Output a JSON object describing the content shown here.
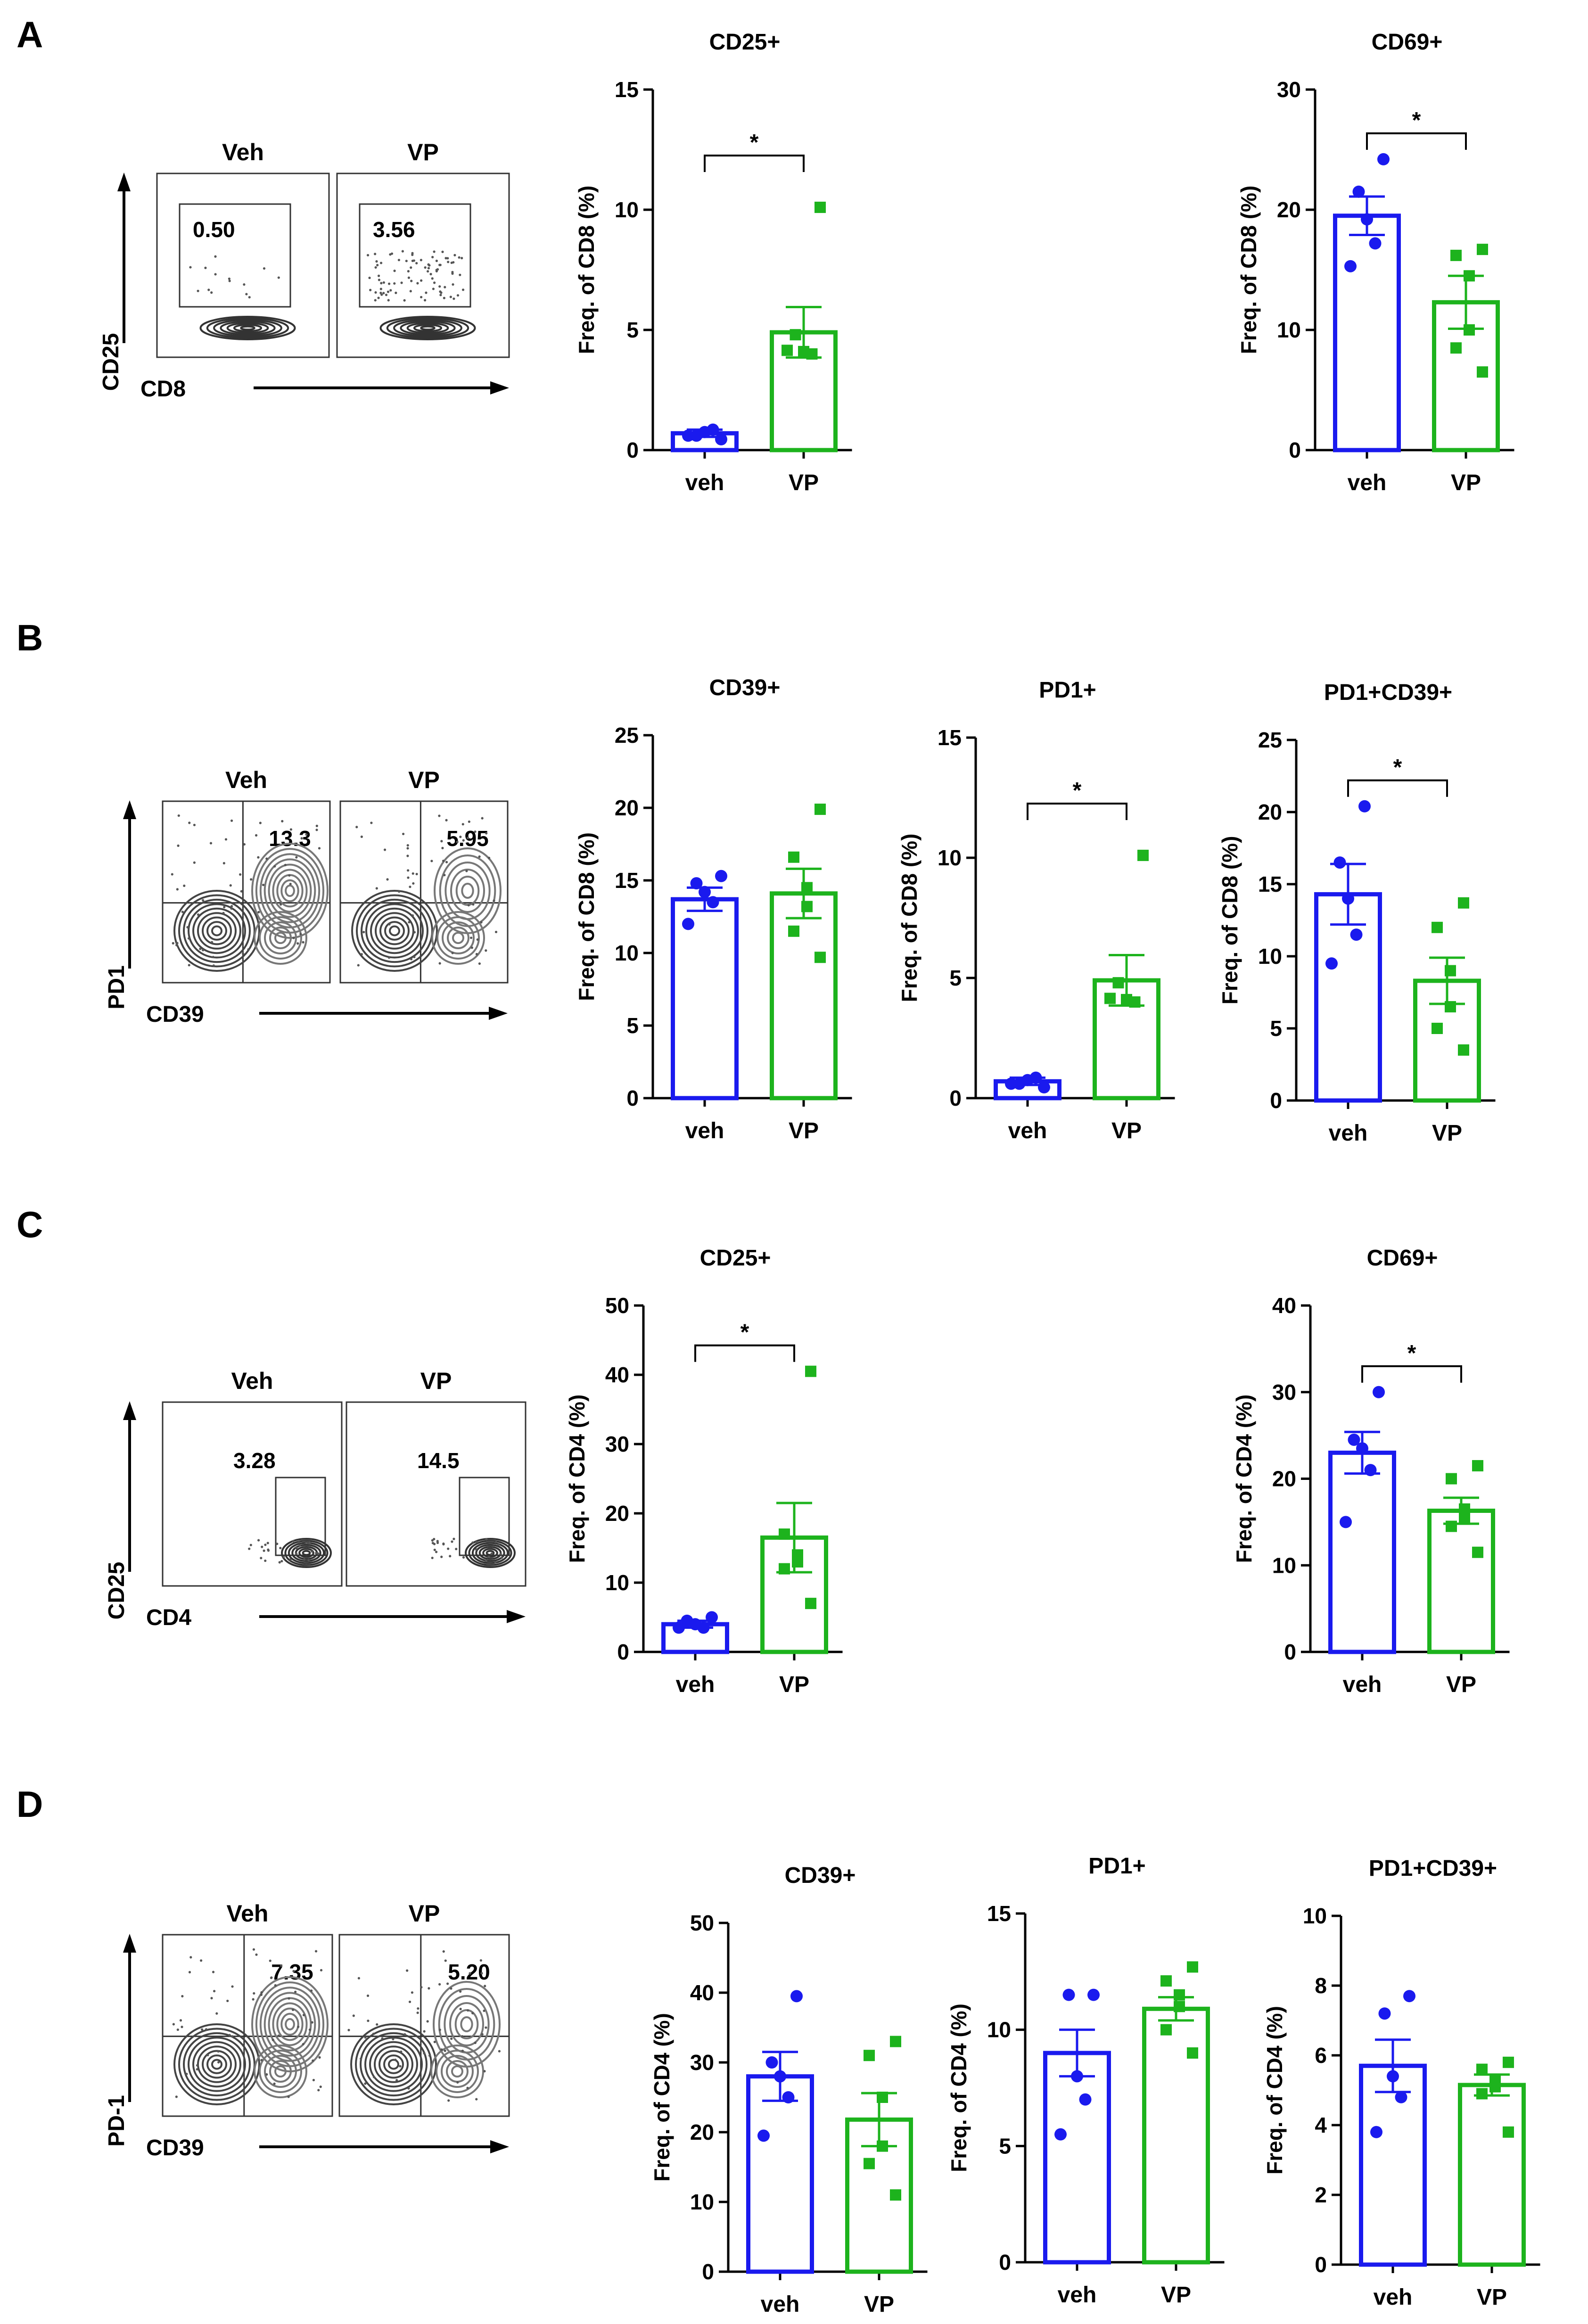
{
  "figure": {
    "panels": [
      {
        "id": "A",
        "label": "A"
      },
      {
        "id": "B",
        "label": "B"
      },
      {
        "id": "C",
        "label": "C"
      },
      {
        "id": "D",
        "label": "D"
      }
    ],
    "colors": {
      "veh": "#1a1aee",
      "vp": "#1db31d",
      "axis": "#000000"
    }
  },
  "flow_plots": [
    {
      "panel": "A",
      "headers": [
        "Veh",
        "VP"
      ],
      "values": [
        "0.50",
        "3.56"
      ],
      "ylabel": "CD25",
      "xlabel": "CD8",
      "gate": "box-top"
    },
    {
      "panel": "B",
      "headers": [
        "Veh",
        "VP"
      ],
      "values": [
        "13.3",
        "5.95"
      ],
      "ylabel": "PD1",
      "xlabel": "CD39",
      "gate": "quadrant"
    },
    {
      "panel": "C",
      "headers": [
        "Veh",
        "VP"
      ],
      "values": [
        "3.28",
        "14.5"
      ],
      "ylabel": "CD25",
      "xlabel": "CD4",
      "gate": "box-right"
    },
    {
      "panel": "D",
      "headers": [
        "Veh",
        "VP"
      ],
      "values": [
        "7.35",
        "5.20"
      ],
      "ylabel": "PD-1",
      "xlabel": "CD39",
      "gate": "quadrant"
    }
  ],
  "chart_data": [
    {
      "panel": "A",
      "type": "bar",
      "title": "CD25+",
      "ylabel": "Freq. of CD8 (%)",
      "categories": [
        "veh",
        "VP"
      ],
      "ylim": [
        0,
        15
      ],
      "yticks": [
        0,
        5,
        10,
        15
      ],
      "tick_labels": [
        "0",
        "5",
        "10",
        "15"
      ],
      "series": [
        {
          "name": "veh",
          "mean": 0.7,
          "sem": 0.15,
          "points": [
            0.45,
            0.6,
            0.75,
            0.85,
            0.6
          ]
        },
        {
          "name": "VP",
          "mean": 4.9,
          "sem": 1.05,
          "points": [
            10.1,
            4.8,
            4.1,
            4.0,
            4.15
          ]
        }
      ],
      "significance": "*"
    },
    {
      "panel": "A",
      "type": "bar",
      "title": "CD69+",
      "ylabel": "Freq. of CD8 (%)",
      "categories": [
        "veh",
        "VP"
      ],
      "ylim": [
        0,
        30
      ],
      "yticks": [
        0,
        10,
        20,
        30
      ],
      "tick_labels": [
        "0",
        "10",
        "20",
        "30"
      ],
      "series": [
        {
          "name": "veh",
          "mean": 19.5,
          "sem": 1.6,
          "points": [
            24.2,
            21.5,
            19.2,
            17.2,
            15.3
          ]
        },
        {
          "name": "VP",
          "mean": 12.3,
          "sem": 2.2,
          "points": [
            16.7,
            16.2,
            14.5,
            10.0,
            8.5,
            6.5
          ]
        }
      ],
      "significance": "*"
    },
    {
      "panel": "B",
      "type": "bar",
      "title": "CD39+",
      "ylabel": "Freq. of CD8 (%)",
      "categories": [
        "veh",
        "VP"
      ],
      "ylim": [
        0,
        25
      ],
      "yticks": [
        0,
        5,
        10,
        15,
        20,
        25
      ],
      "tick_labels": [
        "0",
        "5",
        "10",
        "15",
        "20",
        "25"
      ],
      "series": [
        {
          "name": "veh",
          "mean": 13.7,
          "sem": 0.8,
          "points": [
            15.3,
            14.8,
            14.2,
            13.5,
            12.0
          ]
        },
        {
          "name": "VP",
          "mean": 14.1,
          "sem": 1.7,
          "points": [
            19.9,
            16.6,
            14.5,
            13.2,
            11.5,
            9.7
          ]
        }
      ],
      "significance": ""
    },
    {
      "panel": "B",
      "type": "bar",
      "title": "PD1+",
      "ylabel": "Freq. of CD8 (%)",
      "categories": [
        "veh",
        "VP"
      ],
      "ylim": [
        0,
        15
      ],
      "yticks": [
        0,
        5,
        10,
        15
      ],
      "tick_labels": [
        "0",
        "5",
        "10",
        "15"
      ],
      "series": [
        {
          "name": "veh",
          "mean": 0.7,
          "sem": 0.15,
          "points": [
            0.45,
            0.6,
            0.75,
            0.85,
            0.6
          ]
        },
        {
          "name": "VP",
          "mean": 4.9,
          "sem": 1.05,
          "points": [
            10.1,
            4.8,
            4.1,
            4.0,
            4.15
          ]
        }
      ],
      "significance": "*"
    },
    {
      "panel": "B",
      "type": "bar",
      "title": "PD1+CD39+",
      "ylabel": "Freq. of CD8 (%)",
      "categories": [
        "veh",
        "VP"
      ],
      "ylim": [
        0,
        25
      ],
      "yticks": [
        0,
        5,
        10,
        15,
        20,
        25
      ],
      "tick_labels": [
        "0",
        "5",
        "10",
        "15",
        "20",
        "25"
      ],
      "series": [
        {
          "name": "veh",
          "mean": 14.3,
          "sem": 2.1,
          "points": [
            20.4,
            16.5,
            14.0,
            11.5,
            9.5
          ]
        },
        {
          "name": "VP",
          "mean": 8.3,
          "sem": 1.6,
          "points": [
            13.7,
            12.0,
            9.0,
            6.5,
            5.0,
            3.5
          ]
        }
      ],
      "significance": "*"
    },
    {
      "panel": "C",
      "type": "bar",
      "title": "CD25+",
      "ylabel": "Freq. of CD4 (%)",
      "categories": [
        "veh",
        "VP"
      ],
      "ylim": [
        0,
        50
      ],
      "yticks": [
        0,
        10,
        20,
        30,
        40,
        50
      ],
      "tick_labels": [
        "0",
        "10",
        "20",
        "30",
        "40",
        "50"
      ],
      "series": [
        {
          "name": "veh",
          "mean": 4.0,
          "sem": 0.5,
          "points": [
            5.0,
            4.5,
            4.0,
            3.5,
            3.5
          ]
        },
        {
          "name": "VP",
          "mean": 16.5,
          "sem": 5.0,
          "points": [
            40.5,
            17.0,
            14.0,
            13.0,
            12.0,
            7.0
          ]
        }
      ],
      "significance": "*"
    },
    {
      "panel": "C",
      "type": "bar",
      "title": "CD69+",
      "ylabel": "Freq. of CD4 (%)",
      "categories": [
        "veh",
        "VP"
      ],
      "ylim": [
        0,
        40
      ],
      "yticks": [
        0,
        10,
        20,
        30,
        40
      ],
      "tick_labels": [
        "0",
        "10",
        "20",
        "30",
        "40"
      ],
      "series": [
        {
          "name": "veh",
          "mean": 23.0,
          "sem": 2.4,
          "points": [
            30.0,
            24.5,
            23.5,
            21.0,
            15.0
          ]
        },
        {
          "name": "VP",
          "mean": 16.3,
          "sem": 1.5,
          "points": [
            21.5,
            20.0,
            16.5,
            15.5,
            14.5,
            11.5
          ]
        }
      ],
      "significance": "*"
    },
    {
      "panel": "D",
      "type": "bar",
      "title": "CD39+",
      "ylabel": "Freq. of CD4 (%)",
      "categories": [
        "veh",
        "VP"
      ],
      "ylim": [
        0,
        50
      ],
      "yticks": [
        0,
        10,
        20,
        30,
        40,
        50
      ],
      "tick_labels": [
        "0",
        "10",
        "20",
        "30",
        "40",
        "50"
      ],
      "series": [
        {
          "name": "veh",
          "mean": 28.0,
          "sem": 3.5,
          "points": [
            39.5,
            30.0,
            28.0,
            25.0,
            19.5
          ]
        },
        {
          "name": "VP",
          "mean": 21.8,
          "sem": 3.8,
          "points": [
            33.0,
            31.0,
            25.0,
            18.0,
            15.5,
            11.0
          ]
        }
      ],
      "significance": ""
    },
    {
      "panel": "D",
      "type": "bar",
      "title": "PD1+",
      "ylabel": "Freq. of CD4 (%)",
      "categories": [
        "veh",
        "VP"
      ],
      "ylim": [
        0,
        15
      ],
      "yticks": [
        0,
        5,
        10,
        15
      ],
      "tick_labels": [
        "0",
        "5",
        "10",
        "15"
      ],
      "series": [
        {
          "name": "veh",
          "mean": 9.0,
          "sem": 1.0,
          "points": [
            11.5,
            11.5,
            8.0,
            7.0,
            5.5
          ]
        },
        {
          "name": "VP",
          "mean": 10.9,
          "sem": 0.5,
          "points": [
            12.7,
            12.1,
            11.5,
            11.0,
            10.0,
            9.0
          ]
        }
      ],
      "significance": ""
    },
    {
      "panel": "D",
      "type": "bar",
      "title": "PD1+CD39+",
      "ylabel": "Freq. of CD4 (%)",
      "categories": [
        "veh",
        "VP"
      ],
      "ylim": [
        0,
        10
      ],
      "yticks": [
        0,
        2,
        4,
        6,
        8,
        10
      ],
      "tick_labels": [
        "0",
        "2",
        "4",
        "6",
        "8",
        "10"
      ],
      "series": [
        {
          "name": "veh",
          "mean": 5.7,
          "sem": 0.75,
          "points": [
            7.7,
            7.2,
            5.4,
            4.8,
            3.8
          ]
        },
        {
          "name": "VP",
          "mean": 5.15,
          "sem": 0.3,
          "points": [
            5.8,
            5.6,
            5.3,
            5.1,
            4.9,
            3.8
          ]
        }
      ],
      "significance": ""
    }
  ]
}
